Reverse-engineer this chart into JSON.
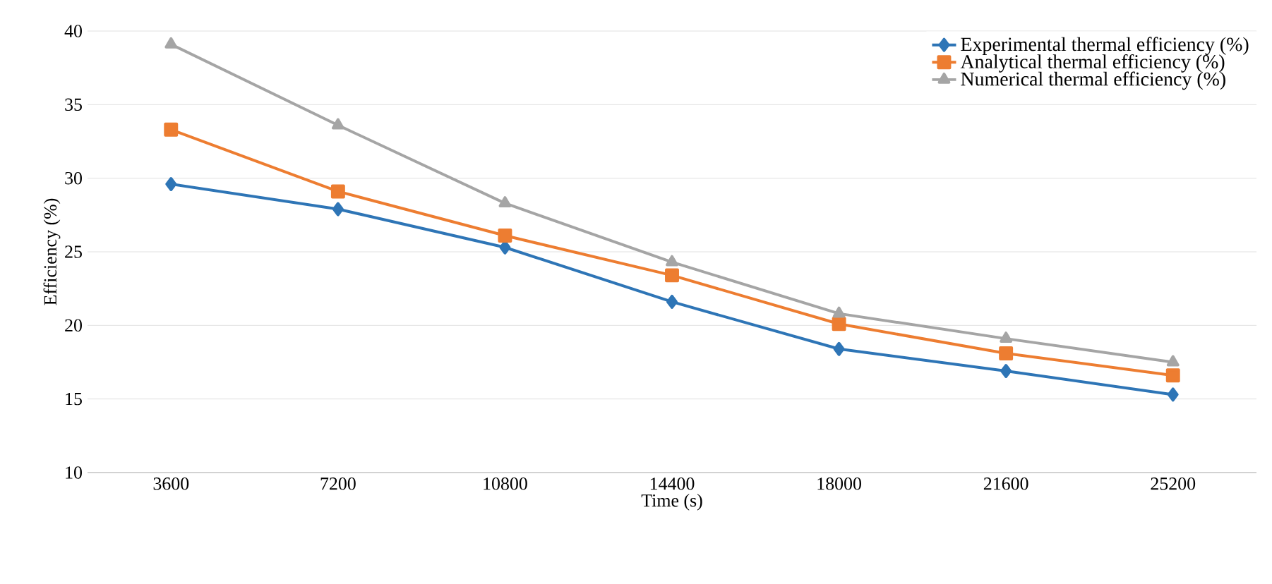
{
  "chart_data": {
    "type": "line",
    "xlabel": "Time (s)",
    "ylabel": "Efficiency (%)",
    "categories": [
      "3600",
      "7200",
      "10800",
      "14400",
      "18000",
      "21600",
      "25200"
    ],
    "series": [
      {
        "name": "Experimental thermal efficiency (%)",
        "color": "#2e75b6",
        "marker": "diamond",
        "values": [
          29.6,
          27.9,
          25.3,
          21.6,
          18.4,
          16.9,
          15.3
        ]
      },
      {
        "name": "Analytical thermal efficiency (%)",
        "color": "#ed7d31",
        "marker": "square",
        "values": [
          33.3,
          29.1,
          26.1,
          23.4,
          20.1,
          18.1,
          16.6
        ]
      },
      {
        "name": "Numerical thermal efficiency (%)",
        "color": "#a5a5a5",
        "marker": "triangle",
        "values": [
          39.1,
          33.6,
          28.3,
          24.3,
          20.8,
          19.1,
          17.5
        ]
      }
    ],
    "ylim": [
      10,
      40
    ],
    "yticks": [
      10,
      15,
      20,
      25,
      30,
      35,
      40
    ],
    "grid": "y",
    "legend": "top right"
  }
}
